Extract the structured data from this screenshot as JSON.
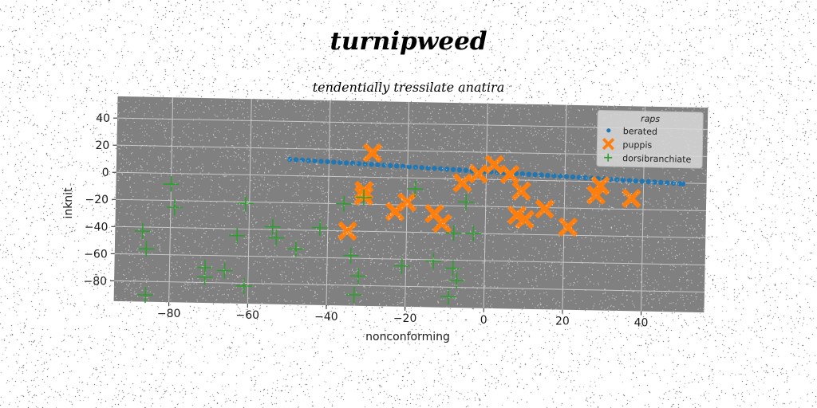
{
  "chart_data": {
    "type": "scatter",
    "suptitle": "turnipweed",
    "title": "tendentially tressilate anatira",
    "xlabel": "nonconforming",
    "ylabel": "inknit",
    "xlim": [
      -94,
      56
    ],
    "ylim": [
      -95,
      56
    ],
    "xticks": [
      -80,
      -60,
      -40,
      -20,
      0,
      20,
      40
    ],
    "yticks": [
      -80,
      -60,
      -40,
      -20,
      0,
      20,
      40
    ],
    "grid": true,
    "legend": {
      "title": "raps",
      "placement": "upper right"
    },
    "colors": {
      "plot_bg": "#808080",
      "grid": "#c8c8c8"
    },
    "series": [
      {
        "name": "berated",
        "marker": "dot",
        "color": "#1f77b4",
        "points": [
          [
            -50,
            12.0
          ],
          [
            -48.4,
            11.8
          ],
          [
            -46.8,
            11.6
          ],
          [
            -45.2,
            11.4
          ],
          [
            -43.6,
            11.2
          ],
          [
            -42.0,
            11.0
          ],
          [
            -40.4,
            10.8
          ],
          [
            -38.8,
            10.6
          ],
          [
            -37.2,
            10.4
          ],
          [
            -35.6,
            10.2
          ],
          [
            -34.0,
            10.0
          ],
          [
            -32.4,
            9.8
          ],
          [
            -30.8,
            9.6
          ],
          [
            -29.2,
            9.4
          ],
          [
            -27.6,
            9.2
          ],
          [
            -26.0,
            9.0
          ],
          [
            -24.4,
            8.8
          ],
          [
            -22.8,
            8.6
          ],
          [
            -21.2,
            8.4
          ],
          [
            -19.6,
            8.2
          ],
          [
            -18.0,
            8.0
          ],
          [
            -16.4,
            7.8
          ],
          [
            -14.8,
            7.6
          ],
          [
            -13.2,
            7.4
          ],
          [
            -11.6,
            7.2
          ],
          [
            -10.0,
            7.0
          ],
          [
            -8.4,
            6.8
          ],
          [
            -6.8,
            6.6
          ],
          [
            -5.2,
            6.4
          ],
          [
            -3.6,
            6.2
          ],
          [
            -2.0,
            6.0
          ],
          [
            -0.4,
            5.8
          ],
          [
            1.2,
            5.6
          ],
          [
            2.8,
            5.4
          ],
          [
            4.4,
            5.2
          ],
          [
            6.0,
            5.0
          ],
          [
            7.6,
            4.8
          ],
          [
            9.2,
            4.6
          ],
          [
            10.8,
            4.4
          ],
          [
            12.4,
            4.2
          ],
          [
            14.0,
            4.0
          ],
          [
            15.6,
            3.8
          ],
          [
            17.2,
            3.6
          ],
          [
            18.8,
            3.4
          ],
          [
            20.4,
            3.2
          ],
          [
            22.0,
            3.0
          ],
          [
            23.6,
            2.8
          ],
          [
            25.2,
            2.6
          ],
          [
            26.8,
            2.4
          ],
          [
            28.4,
            2.2
          ],
          [
            30.0,
            2.0
          ],
          [
            31.6,
            1.8
          ],
          [
            33.2,
            1.6
          ],
          [
            34.8,
            1.4
          ],
          [
            36.4,
            1.2
          ],
          [
            38.0,
            1.0
          ],
          [
            39.6,
            0.8
          ],
          [
            41.2,
            0.6
          ],
          [
            42.8,
            0.4
          ],
          [
            44.4,
            0.2
          ],
          [
            46.0,
            0.0
          ],
          [
            47.6,
            -0.2
          ],
          [
            49.2,
            -0.4
          ],
          [
            50.0,
            -0.5
          ]
        ]
      },
      {
        "name": "puppis",
        "marker": "x-filled",
        "color": "#ff7f0e",
        "points": [
          [
            -29,
            18
          ],
          [
            -31,
            -10
          ],
          [
            -31,
            -14
          ],
          [
            -35,
            -40
          ],
          [
            -23,
            -25
          ],
          [
            -20,
            -18
          ],
          [
            -13,
            -26
          ],
          [
            -11,
            -33
          ],
          [
            -6,
            -3
          ],
          [
            -2,
            4
          ],
          [
            2,
            11
          ],
          [
            6,
            4
          ],
          [
            9,
            -8
          ],
          [
            8,
            -26
          ],
          [
            10,
            -29
          ],
          [
            15,
            -21
          ],
          [
            21,
            -34
          ],
          [
            28,
            -10
          ],
          [
            29,
            -3
          ],
          [
            37,
            -12
          ]
        ]
      },
      {
        "name": "dorsibranchiate",
        "marker": "plus",
        "color": "#2ca02c",
        "points": [
          [
            -80,
            -8
          ],
          [
            -79,
            -25
          ],
          [
            -87,
            -43
          ],
          [
            -86,
            -56
          ],
          [
            -86,
            -90
          ],
          [
            -71,
            -69
          ],
          [
            -71,
            -76
          ],
          [
            -66,
            -71
          ],
          [
            -63,
            -45
          ],
          [
            -61,
            -21
          ],
          [
            -61,
            -82
          ],
          [
            -54,
            -38
          ],
          [
            -53,
            -46
          ],
          [
            -48,
            -54
          ],
          [
            -42,
            -38
          ],
          [
            -36,
            -20
          ],
          [
            -34,
            -58
          ],
          [
            -32,
            -73
          ],
          [
            -33,
            -87
          ],
          [
            -31,
            -15
          ],
          [
            -21,
            -65
          ],
          [
            -18,
            -8
          ],
          [
            -13,
            -61
          ],
          [
            -9,
            -87
          ],
          [
            -8,
            -66
          ],
          [
            -7,
            -75
          ],
          [
            -8,
            -40
          ],
          [
            -5,
            -17
          ],
          [
            -3,
            -40
          ]
        ]
      }
    ]
  }
}
